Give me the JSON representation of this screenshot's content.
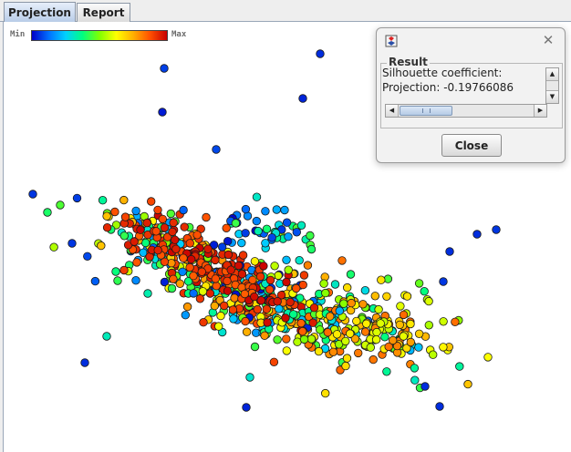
{
  "tabs": [
    {
      "label": "Projection",
      "active": true
    },
    {
      "label": "Report",
      "active": false
    }
  ],
  "legend": {
    "min_label": "Min",
    "max_label": "Max",
    "gradient_colors": [
      "#0000c8",
      "#0070ff",
      "#00d0ff",
      "#00ff80",
      "#80ff00",
      "#ffff00",
      "#ffb000",
      "#ff5000",
      "#c80000"
    ]
  },
  "dialog": {
    "icon": "java-app-icon",
    "group_title": "Result",
    "line1": "Silhouette coefficient:",
    "line2": "Projection: -0.19766086",
    "close_label": "Close"
  },
  "chart_data": {
    "type": "scatter",
    "title": "",
    "xlabel": "",
    "ylabel": "",
    "color_scale": [
      "#0000c8",
      "#0070ff",
      "#00d0ff",
      "#00ff80",
      "#80ff00",
      "#ffff00",
      "#ffb000",
      "#ff5000",
      "#c80000"
    ],
    "xlim": [
      0,
      623
    ],
    "ylim": [
      0,
      472
    ],
    "outliers": [
      {
        "x": 347,
        "y": 35,
        "c": 0.05
      },
      {
        "x": 176,
        "y": 51,
        "c": 0.07
      },
      {
        "x": 328,
        "y": 84,
        "c": 0.04
      },
      {
        "x": 174,
        "y": 99,
        "c": 0.03
      },
      {
        "x": 233,
        "y": 140,
        "c": 0.08
      },
      {
        "x": 32,
        "y": 189,
        "c": 0.06
      },
      {
        "x": 540,
        "y": 228,
        "c": 0.06
      },
      {
        "x": 519,
        "y": 233,
        "c": 0.05
      },
      {
        "x": 489,
        "y": 252,
        "c": 0.05
      },
      {
        "x": 482,
        "y": 285,
        "c": 0.06
      },
      {
        "x": 89,
        "y": 374,
        "c": 0.05
      },
      {
        "x": 113,
        "y": 345,
        "c": 0.32
      },
      {
        "x": 270,
        "y": 390,
        "c": 0.3
      },
      {
        "x": 266,
        "y": 423,
        "c": 0.04
      },
      {
        "x": 462,
        "y": 400,
        "c": 0.05
      },
      {
        "x": 478,
        "y": 422,
        "c": 0.05
      },
      {
        "x": 48,
        "y": 209,
        "c": 0.4
      },
      {
        "x": 62,
        "y": 201,
        "c": 0.45
      },
      {
        "x": 123,
        "y": 274,
        "c": 0.38
      },
      {
        "x": 125,
        "y": 284,
        "c": 0.42
      },
      {
        "x": 158,
        "y": 298,
        "c": 0.33
      },
      {
        "x": 75,
        "y": 243,
        "c": 0.06
      }
    ],
    "clusters": [
      {
        "cx": 175,
        "cy": 245,
        "sx": 40,
        "sy": 14,
        "n": 140,
        "cmin": 0.1,
        "cmax": 1.0,
        "rot": 0.55
      },
      {
        "cx": 260,
        "cy": 295,
        "sx": 60,
        "sy": 22,
        "n": 260,
        "cmin": 0.0,
        "cmax": 1.0,
        "rot": 0.35
      },
      {
        "cx": 355,
        "cy": 330,
        "sx": 65,
        "sy": 24,
        "n": 180,
        "cmin": 0.2,
        "cmax": 0.85,
        "rot": 0.25
      },
      {
        "cx": 420,
        "cy": 335,
        "sx": 35,
        "sy": 18,
        "n": 60,
        "cmin": 0.55,
        "cmax": 0.85,
        "rot": 0.1
      },
      {
        "cx": 230,
        "cy": 270,
        "sx": 55,
        "sy": 14,
        "n": 160,
        "cmin": 0.85,
        "cmax": 1.0,
        "rot": 0.5
      },
      {
        "cx": 290,
        "cy": 225,
        "sx": 30,
        "sy": 12,
        "n": 40,
        "cmin": 0.0,
        "cmax": 0.45,
        "rot": 0.1
      }
    ]
  }
}
